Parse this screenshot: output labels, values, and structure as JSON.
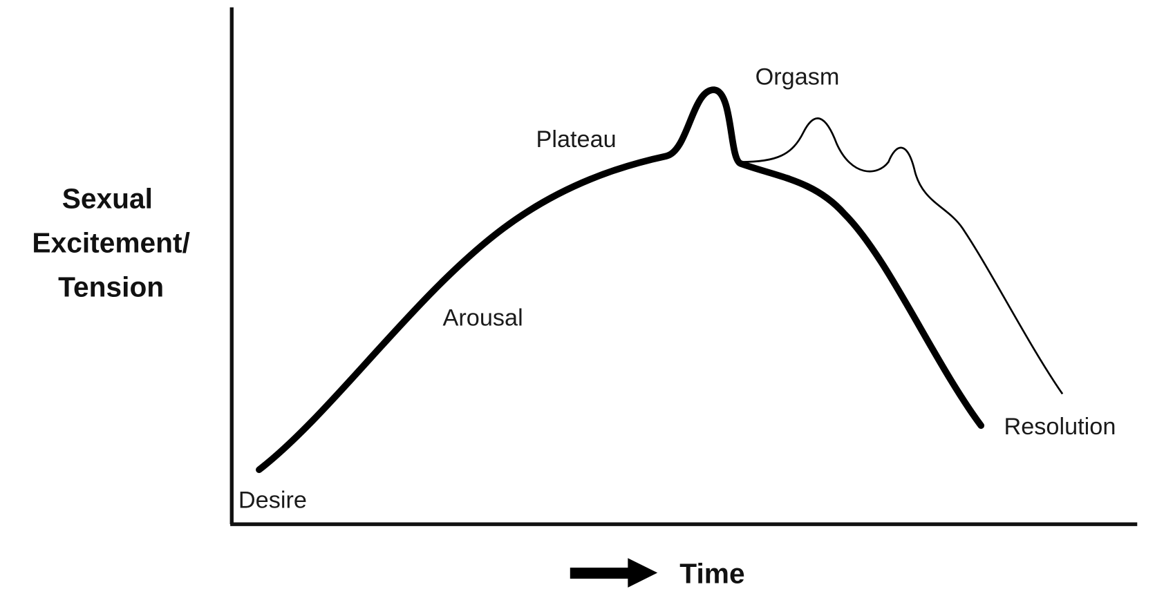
{
  "y_axis_label": [
    "Sexual",
    "Excitement/",
    "Tension"
  ],
  "x_axis_label": "Time",
  "phases": [
    "Desire",
    "Arousal",
    "Plateau",
    "Orgasm",
    "Resolution"
  ]
}
